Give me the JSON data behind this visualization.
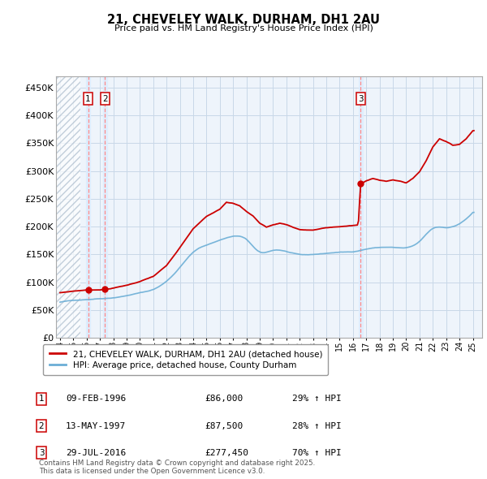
{
  "title": "21, CHEVELEY WALK, DURHAM, DH1 2AU",
  "subtitle": "Price paid vs. HM Land Registry's House Price Index (HPI)",
  "ylabel_ticks": [
    "£0",
    "£50K",
    "£100K",
    "£150K",
    "£200K",
    "£250K",
    "£300K",
    "£350K",
    "£400K",
    "£450K"
  ],
  "ytick_values": [
    0,
    50000,
    100000,
    150000,
    200000,
    250000,
    300000,
    350000,
    400000,
    450000
  ],
  "ylim": [
    0,
    470000
  ],
  "xlim_start": 1993.7,
  "xlim_end": 2025.7,
  "hpi_color": "#6baed6",
  "price_color": "#cc0000",
  "vline_color": "#ff8888",
  "vband_color": "#ddeeff",
  "grid_color": "#c8d8e8",
  "bg_color": "#eef4fb",
  "hatch_color": "#c0c8d0",
  "legend_label_price": "21, CHEVELEY WALK, DURHAM, DH1 2AU (detached house)",
  "legend_label_hpi": "HPI: Average price, detached house, County Durham",
  "footer": "Contains HM Land Registry data © Crown copyright and database right 2025.\nThis data is licensed under the Open Government Licence v3.0.",
  "sales": [
    {
      "label": "1",
      "date_num": 1996.11,
      "price": 86000,
      "pct": "29%",
      "dir": "↑",
      "date_str": "09-FEB-1996"
    },
    {
      "label": "2",
      "date_num": 1997.37,
      "price": 87500,
      "pct": "28%",
      "dir": "↑",
      "date_str": "13-MAY-1997"
    },
    {
      "label": "3",
      "date_num": 2016.57,
      "price": 277450,
      "pct": "70%",
      "dir": "↑",
      "date_str": "29-JUL-2016"
    }
  ]
}
